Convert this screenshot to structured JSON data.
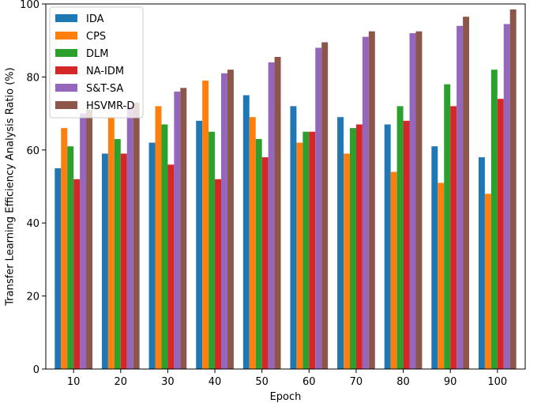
{
  "chart_data": {
    "type": "bar",
    "title": "",
    "xlabel": "Epoch",
    "ylabel": "Transfer Learning Efficiency Analysis Ratio (%)",
    "categories": [
      "10",
      "20",
      "30",
      "40",
      "50",
      "60",
      "70",
      "80",
      "90",
      "100"
    ],
    "ylim": [
      0,
      100
    ],
    "yticks": [
      0,
      20,
      40,
      60,
      80,
      100
    ],
    "legend_position": "top-left",
    "grid": false,
    "series": [
      {
        "name": "IDA",
        "color": "#1f77b4",
        "values": [
          55,
          59,
          62,
          68,
          75,
          72,
          69,
          67,
          61,
          58
        ]
      },
      {
        "name": "CPS",
        "color": "#ff7f0e",
        "values": [
          66,
          69,
          72,
          79,
          69,
          62,
          59,
          54,
          51,
          48
        ]
      },
      {
        "name": "DLM",
        "color": "#2ca02c",
        "values": [
          61,
          63,
          67,
          65,
          63,
          65,
          66,
          72,
          78,
          82
        ]
      },
      {
        "name": "NA-IDM",
        "color": "#d62728",
        "values": [
          52,
          59,
          56,
          52,
          58,
          65,
          67,
          68,
          72,
          74
        ]
      },
      {
        "name": "S&T-SA",
        "color": "#9467bd",
        "values": [
          70,
          72,
          76,
          81,
          84,
          88,
          91,
          92,
          94,
          94.5
        ]
      },
      {
        "name": "HSVMR-D",
        "color": "#8c564b",
        "values": [
          71,
          73,
          77,
          82,
          85.5,
          89.5,
          92.5,
          92.5,
          96.5,
          98.5
        ]
      }
    ]
  }
}
